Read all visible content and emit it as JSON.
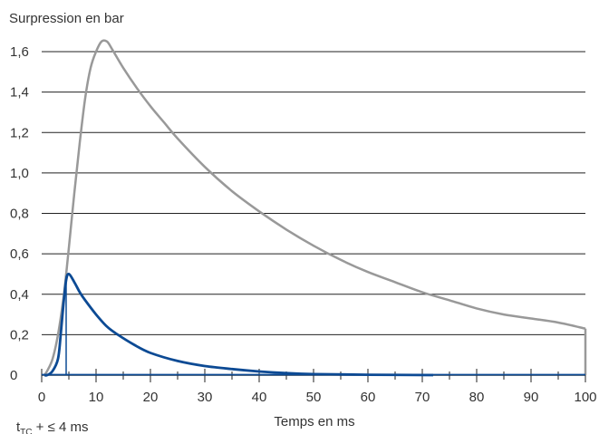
{
  "chart_data": {
    "type": "line",
    "ylabel": "Surpression en bar",
    "xlabel": "Temps en ms",
    "xlim": [
      0,
      100
    ],
    "ylim": [
      0,
      1.6
    ],
    "x_ticks": [
      0,
      10,
      20,
      30,
      40,
      50,
      60,
      70,
      80,
      90,
      100
    ],
    "x_tick_labels": [
      "0",
      "10",
      "20",
      "30",
      "40",
      "50",
      "60",
      "70",
      "80",
      "90",
      "100"
    ],
    "y_ticks": [
      0,
      0.2,
      0.4,
      0.6,
      0.8,
      1.0,
      1.2,
      1.4,
      1.6
    ],
    "y_tick_labels": [
      "0",
      "0,2",
      "0,4",
      "0,6",
      "0,8",
      "1,0",
      "1,2",
      "1,4",
      "1,6"
    ],
    "grid": "horizontal",
    "annotation": {
      "main": "t",
      "sub": "TC",
      "rest": " + ≤ 4 ms"
    },
    "colors": {
      "grey_series": "#999999",
      "blue_series": "#0c4a94",
      "grid": "#222222",
      "text": "#333333"
    },
    "series": [
      {
        "color": "#999999",
        "x": [
          0.5,
          1,
          2,
          3,
          4,
          4.5,
          5,
          6,
          7,
          8,
          9,
          10,
          11,
          12,
          13,
          15,
          17.5,
          20,
          22.5,
          25,
          30,
          35,
          40,
          45,
          50,
          55,
          60,
          65,
          70,
          75,
          80,
          85,
          90,
          95,
          100,
          100
        ],
        "y": [
          0.0,
          0.02,
          0.08,
          0.2,
          0.38,
          0.5,
          0.63,
          0.9,
          1.15,
          1.37,
          1.52,
          1.6,
          1.65,
          1.65,
          1.61,
          1.52,
          1.42,
          1.33,
          1.25,
          1.17,
          1.03,
          0.91,
          0.81,
          0.72,
          0.64,
          0.57,
          0.51,
          0.46,
          0.41,
          0.37,
          0.33,
          0.3,
          0.28,
          0.26,
          0.23,
          0.0
        ]
      },
      {
        "color": "#0c4a94",
        "x": [
          0.5,
          1,
          2,
          3,
          3.5,
          4,
          4.5,
          5,
          6,
          7,
          8,
          10,
          12,
          14,
          17,
          20,
          25,
          30,
          35,
          40,
          45,
          50,
          60,
          72
        ],
        "y": [
          0.0,
          0.0,
          0.02,
          0.08,
          0.2,
          0.35,
          0.47,
          0.5,
          0.46,
          0.41,
          0.37,
          0.3,
          0.24,
          0.2,
          0.15,
          0.11,
          0.07,
          0.045,
          0.03,
          0.018,
          0.01,
          0.005,
          0.002,
          0.0
        ]
      }
    ],
    "marker_x": 4.5
  }
}
